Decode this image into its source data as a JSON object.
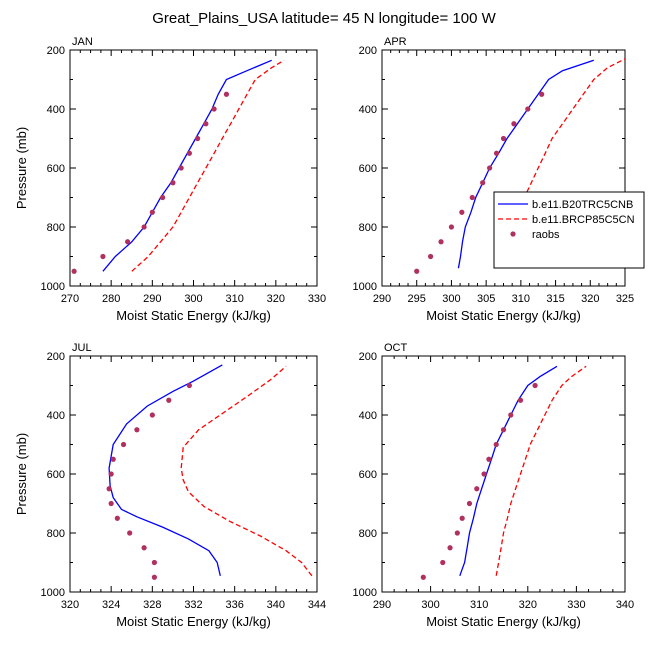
{
  "figure": {
    "title": "Great_Plains_USA  latitude= 45 N longitude= 100 W"
  },
  "legend": {
    "entries": [
      {
        "label": "b.e11.B20TRC5CNB",
        "style": "line",
        "color": "#0000ff"
      },
      {
        "label": "b.e11.BRCP85C5CN",
        "style": "dashed",
        "color": "#ff0000"
      },
      {
        "label": "raobs",
        "style": "marker",
        "color": "#b03060"
      }
    ]
  },
  "colors": {
    "model_hist": "#0000ff",
    "model_rcp": "#ff0000",
    "obs": "#b03060"
  },
  "chart_data": [
    {
      "type": "line",
      "panel_label": "JAN",
      "xlabel": "Moist Static Energy (kJ/kg)",
      "ylabel": "Pressure (mb)",
      "xlim": [
        270,
        330
      ],
      "ylim": [
        1000,
        200
      ],
      "xticks": [
        "270",
        "280",
        "290",
        "300",
        "310",
        "320",
        "330"
      ],
      "yticks": [
        "200",
        "400",
        "600",
        "800",
        "1000"
      ],
      "series": [
        {
          "name": "b.e11.B20TRC5CNB",
          "style": "solid",
          "points": [
            [
              278,
              950
            ],
            [
              281,
              900
            ],
            [
              285,
              850
            ],
            [
              288,
              800
            ],
            [
              290,
              750
            ],
            [
              292,
              700
            ],
            [
              294.5,
              650
            ],
            [
              296.5,
              600
            ],
            [
              298.5,
              550
            ],
            [
              300.5,
              500
            ],
            [
              302.5,
              450
            ],
            [
              304.5,
              400
            ],
            [
              306,
              350
            ],
            [
              308,
              300
            ],
            [
              313,
              270
            ],
            [
              319,
              235
            ]
          ]
        },
        {
          "name": "b.e11.BRCP85C5CN",
          "style": "dashed",
          "points": [
            [
              285,
              950
            ],
            [
              289,
              900
            ],
            [
              292,
              850
            ],
            [
              295,
              800
            ],
            [
              297,
              750
            ],
            [
              299,
              700
            ],
            [
              301,
              650
            ],
            [
              303,
              600
            ],
            [
              305,
              550
            ],
            [
              307,
              500
            ],
            [
              309,
              450
            ],
            [
              311,
              400
            ],
            [
              313,
              350
            ],
            [
              315,
              300
            ],
            [
              319,
              260
            ],
            [
              322,
              235
            ]
          ]
        },
        {
          "name": "raobs",
          "style": "markers",
          "points": [
            [
              271,
              950
            ],
            [
              278,
              900
            ],
            [
              284,
              850
            ],
            [
              288,
              800
            ],
            [
              290,
              750
            ],
            [
              292.5,
              700
            ],
            [
              295,
              650
            ],
            [
              297,
              600
            ],
            [
              299,
              550
            ],
            [
              301,
              500
            ],
            [
              303,
              450
            ],
            [
              305,
              400
            ],
            [
              308,
              350
            ]
          ]
        }
      ]
    },
    {
      "type": "line",
      "panel_label": "APR",
      "xlabel": "Moist Static Energy (kJ/kg)",
      "ylabel": "",
      "xlim": [
        290,
        325
      ],
      "ylim": [
        1000,
        200
      ],
      "xticks": [
        "290",
        "295",
        "300",
        "305",
        "310",
        "315",
        "320",
        "325"
      ],
      "yticks": [
        "200",
        "400",
        "600",
        "800",
        "1000"
      ],
      "series": [
        {
          "name": "b.e11.B20TRC5CNB",
          "style": "solid",
          "points": [
            [
              301,
              940
            ],
            [
              301.3,
              900
            ],
            [
              301.6,
              850
            ],
            [
              302,
              800
            ],
            [
              302.8,
              750
            ],
            [
              303.5,
              700
            ],
            [
              304.5,
              650
            ],
            [
              305.5,
              600
            ],
            [
              306.8,
              550
            ],
            [
              308,
              500
            ],
            [
              309.5,
              450
            ],
            [
              311,
              400
            ],
            [
              312.5,
              350
            ],
            [
              314,
              300
            ],
            [
              316,
              270
            ],
            [
              320.5,
              235
            ]
          ]
        },
        {
          "name": "b.e11.BRCP85C5CN",
          "style": "dashed",
          "points": [
            [
              307.5,
              940
            ],
            [
              308,
              900
            ],
            [
              308.5,
              850
            ],
            [
              309,
              800
            ],
            [
              309.8,
              750
            ],
            [
              310.5,
              700
            ],
            [
              311.5,
              650
            ],
            [
              312.5,
              600
            ],
            [
              313.5,
              550
            ],
            [
              314.5,
              500
            ],
            [
              316,
              450
            ],
            [
              317.5,
              400
            ],
            [
              319,
              350
            ],
            [
              320.5,
              300
            ],
            [
              322.5,
              260
            ],
            [
              325,
              230
            ]
          ]
        },
        {
          "name": "raobs",
          "style": "markers",
          "points": [
            [
              295,
              950
            ],
            [
              297,
              900
            ],
            [
              298.5,
              850
            ],
            [
              300,
              800
            ],
            [
              301.5,
              750
            ],
            [
              303,
              700
            ],
            [
              304.5,
              650
            ],
            [
              305.5,
              600
            ],
            [
              306.5,
              550
            ],
            [
              307.5,
              500
            ],
            [
              309,
              450
            ],
            [
              311,
              400
            ],
            [
              313,
              350
            ]
          ]
        }
      ]
    },
    {
      "type": "line",
      "panel_label": "JUL",
      "xlabel": "Moist Static Energy (kJ/kg)",
      "ylabel": "Pressure (mb)",
      "xlim": [
        320,
        344
      ],
      "ylim": [
        1000,
        200
      ],
      "xticks": [
        "320",
        "324",
        "328",
        "332",
        "336",
        "340",
        "344"
      ],
      "yticks": [
        "200",
        "400",
        "600",
        "800",
        "1000"
      ],
      "series": [
        {
          "name": "b.e11.B20TRC5CNB",
          "style": "solid",
          "points": [
            [
              334.6,
              945
            ],
            [
              334.3,
              900
            ],
            [
              333.5,
              860
            ],
            [
              331.5,
              820
            ],
            [
              329,
              780
            ],
            [
              326.5,
              745
            ],
            [
              325,
              720
            ],
            [
              324.2,
              680
            ],
            [
              323.9,
              640
            ],
            [
              323.8,
              580
            ],
            [
              324.2,
              500
            ],
            [
              325.5,
              430
            ],
            [
              327.5,
              370
            ],
            [
              330,
              320
            ],
            [
              332,
              285
            ],
            [
              334.8,
              230
            ]
          ]
        },
        {
          "name": "b.e11.BRCP85C5CN",
          "style": "dashed",
          "points": [
            [
              343.5,
              945
            ],
            [
              342.5,
              900
            ],
            [
              341,
              860
            ],
            [
              338.5,
              810
            ],
            [
              335.5,
              760
            ],
            [
              333,
              710
            ],
            [
              331.5,
              660
            ],
            [
              331,
              620
            ],
            [
              330.8,
              580
            ],
            [
              331,
              510
            ],
            [
              332.5,
              450
            ],
            [
              335,
              390
            ],
            [
              337.5,
              330
            ],
            [
              339.5,
              280
            ],
            [
              341,
              235
            ]
          ]
        },
        {
          "name": "raobs",
          "style": "markers",
          "points": [
            [
              328.2,
              950
            ],
            [
              328.2,
              900
            ],
            [
              327.2,
              850
            ],
            [
              325.8,
              800
            ],
            [
              324.6,
              750
            ],
            [
              324,
              700
            ],
            [
              323.8,
              650
            ],
            [
              324,
              600
            ],
            [
              324.2,
              550
            ],
            [
              325.2,
              500
            ],
            [
              326.5,
              450
            ],
            [
              328,
              400
            ],
            [
              329.6,
              350
            ],
            [
              331.6,
              300
            ]
          ]
        }
      ]
    },
    {
      "type": "line",
      "panel_label": "OCT",
      "xlabel": "Moist Static Energy (kJ/kg)",
      "ylabel": "",
      "xlim": [
        290,
        340
      ],
      "ylim": [
        1000,
        200
      ],
      "xticks": [
        "290",
        "300",
        "310",
        "320",
        "330",
        "340"
      ],
      "yticks": [
        "200",
        "400",
        "600",
        "800",
        "1000"
      ],
      "series": [
        {
          "name": "b.e11.B20TRC5CNB",
          "style": "solid",
          "points": [
            [
              306,
              945
            ],
            [
              307,
              900
            ],
            [
              307.5,
              850
            ],
            [
              308,
              800
            ],
            [
              308.8,
              750
            ],
            [
              309.5,
              700
            ],
            [
              310.5,
              650
            ],
            [
              311.5,
              600
            ],
            [
              312.5,
              550
            ],
            [
              313.5,
              500
            ],
            [
              315,
              450
            ],
            [
              316.5,
              400
            ],
            [
              318,
              350
            ],
            [
              320,
              300
            ],
            [
              322.5,
              270
            ],
            [
              326,
              235
            ]
          ]
        },
        {
          "name": "b.e11.BRCP85C5CN",
          "style": "dashed",
          "points": [
            [
              313.5,
              945
            ],
            [
              314,
              900
            ],
            [
              314.5,
              850
            ],
            [
              315,
              800
            ],
            [
              315.8,
              750
            ],
            [
              316.5,
              700
            ],
            [
              317.5,
              650
            ],
            [
              318.5,
              600
            ],
            [
              319.5,
              550
            ],
            [
              320.5,
              500
            ],
            [
              322,
              450
            ],
            [
              323.5,
              400
            ],
            [
              325,
              350
            ],
            [
              327,
              300
            ],
            [
              329,
              270
            ],
            [
              332,
              235
            ]
          ]
        },
        {
          "name": "raobs",
          "style": "markers",
          "points": [
            [
              298.5,
              950
            ],
            [
              302.5,
              900
            ],
            [
              304,
              850
            ],
            [
              305.5,
              800
            ],
            [
              306.5,
              750
            ],
            [
              308,
              700
            ],
            [
              309.5,
              650
            ],
            [
              311,
              600
            ],
            [
              312,
              550
            ],
            [
              313.5,
              500
            ],
            [
              315,
              450
            ],
            [
              316.5,
              400
            ],
            [
              318.5,
              350
            ],
            [
              321.5,
              300
            ]
          ]
        }
      ]
    }
  ]
}
